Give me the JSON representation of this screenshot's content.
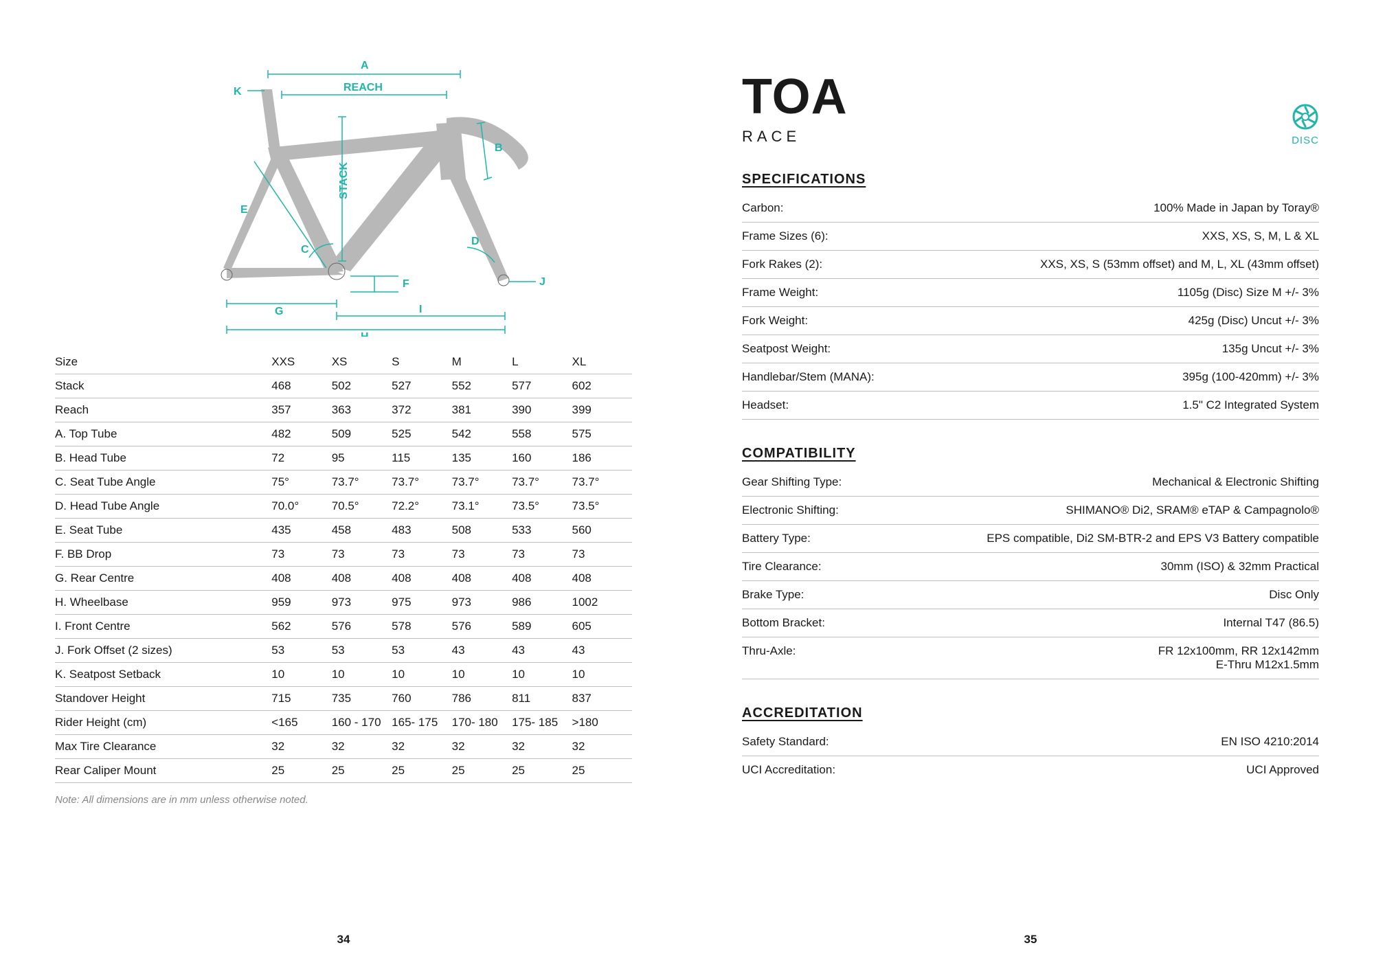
{
  "accent_color": "#1fb5ad",
  "left": {
    "diagram_labels": {
      "A": "A",
      "B": "B",
      "C": "C",
      "D": "D",
      "E": "E",
      "F": "F",
      "G": "G",
      "H": "H",
      "I": "I",
      "J": "J",
      "K": "K",
      "reach": "REACH",
      "stack": "STACK"
    },
    "table": {
      "header": [
        "Size",
        "XXS",
        "XS",
        "S",
        "M",
        "L",
        "XL"
      ],
      "rows": [
        [
          "Stack",
          "468",
          "502",
          "527",
          "552",
          "577",
          "602"
        ],
        [
          "Reach",
          "357",
          "363",
          "372",
          "381",
          "390",
          "399"
        ],
        [
          "A. Top Tube",
          "482",
          "509",
          "525",
          "542",
          "558",
          "575"
        ],
        [
          "B. Head Tube",
          "72",
          "95",
          "115",
          "135",
          "160",
          "186"
        ],
        [
          "C. Seat Tube Angle",
          "75°",
          "73.7°",
          "73.7°",
          "73.7°",
          "73.7°",
          "73.7°"
        ],
        [
          "D. Head Tube Angle",
          "70.0°",
          "70.5°",
          "72.2°",
          "73.1°",
          "73.5°",
          "73.5°"
        ],
        [
          "E. Seat Tube",
          "435",
          "458",
          "483",
          "508",
          "533",
          "560"
        ],
        [
          "F. BB Drop",
          "73",
          "73",
          "73",
          "73",
          "73",
          "73"
        ],
        [
          "G. Rear Centre",
          "408",
          "408",
          "408",
          "408",
          "408",
          "408"
        ],
        [
          "H. Wheelbase",
          "959",
          "973",
          "975",
          "973",
          "986",
          "1002"
        ],
        [
          "I. Front Centre",
          "562",
          "576",
          "578",
          "576",
          "589",
          "605"
        ],
        [
          "J. Fork Offset (2 sizes)",
          "53",
          "53",
          "53",
          "43",
          "43",
          "43"
        ],
        [
          "K. Seatpost Setback",
          "10",
          "10",
          "10",
          "10",
          "10",
          "10"
        ],
        [
          "Standover Height",
          "715",
          "735",
          "760",
          "786",
          "811",
          "837"
        ],
        [
          "Rider Height (cm)",
          "<165",
          "160 - 170",
          "165- 175",
          "170- 180",
          "175- 185",
          ">180"
        ],
        [
          "Max Tire Clearance",
          "32",
          "32",
          "32",
          "32",
          "32",
          "32"
        ],
        [
          "Rear Caliper Mount",
          "25",
          "25",
          "25",
          "25",
          "25",
          "25"
        ]
      ]
    },
    "note": "Note: All dimensions are in mm unless otherwise noted.",
    "page_num": "34"
  },
  "right": {
    "model": "TOA",
    "variant": "RACE",
    "disc_label": "DISC",
    "sections": [
      {
        "title": "SPECIFICATIONS",
        "rows": [
          [
            "Carbon:",
            "100% Made in Japan by Toray®"
          ],
          [
            "Frame Sizes (6):",
            "XXS, XS, S, M, L & XL"
          ],
          [
            "Fork Rakes (2):",
            "XXS, XS, S (53mm offset) and M, L, XL (43mm offset)"
          ],
          [
            "Frame Weight:",
            "1105g (Disc) Size M +/- 3%"
          ],
          [
            "Fork Weight:",
            "425g (Disc) Uncut +/- 3%"
          ],
          [
            "Seatpost Weight:",
            "135g Uncut +/- 3%"
          ],
          [
            "Handlebar/Stem (MANA):",
            "395g (100-420mm) +/- 3%"
          ],
          [
            "Headset:",
            "1.5\" C2  Integrated System"
          ]
        ]
      },
      {
        "title": "COMPATIBILITY",
        "rows": [
          [
            "Gear Shifting Type:",
            "Mechanical & Electronic Shifting"
          ],
          [
            "Electronic Shifting:",
            "SHIMANO® Di2, SRAM® eTAP & Campagnolo®"
          ],
          [
            "Battery Type:",
            "EPS compatible, Di2 SM-BTR-2 and EPS V3 Battery compatible"
          ],
          [
            "Tire Clearance:",
            "30mm (ISO) & 32mm Practical"
          ],
          [
            "Brake Type:",
            "Disc Only"
          ],
          [
            "Bottom Bracket:",
            "Internal T47 (86.5)"
          ],
          [
            "Thru-Axle:",
            "FR 12x100mm, RR 12x142mm\nE-Thru M12x1.5mm"
          ]
        ]
      },
      {
        "title": "ACCREDITATION",
        "rows": [
          [
            "Safety Standard:",
            "EN ISO 4210:2014"
          ],
          [
            "UCI Accreditation:",
            "UCI Approved"
          ]
        ]
      }
    ],
    "page_num": "35"
  }
}
